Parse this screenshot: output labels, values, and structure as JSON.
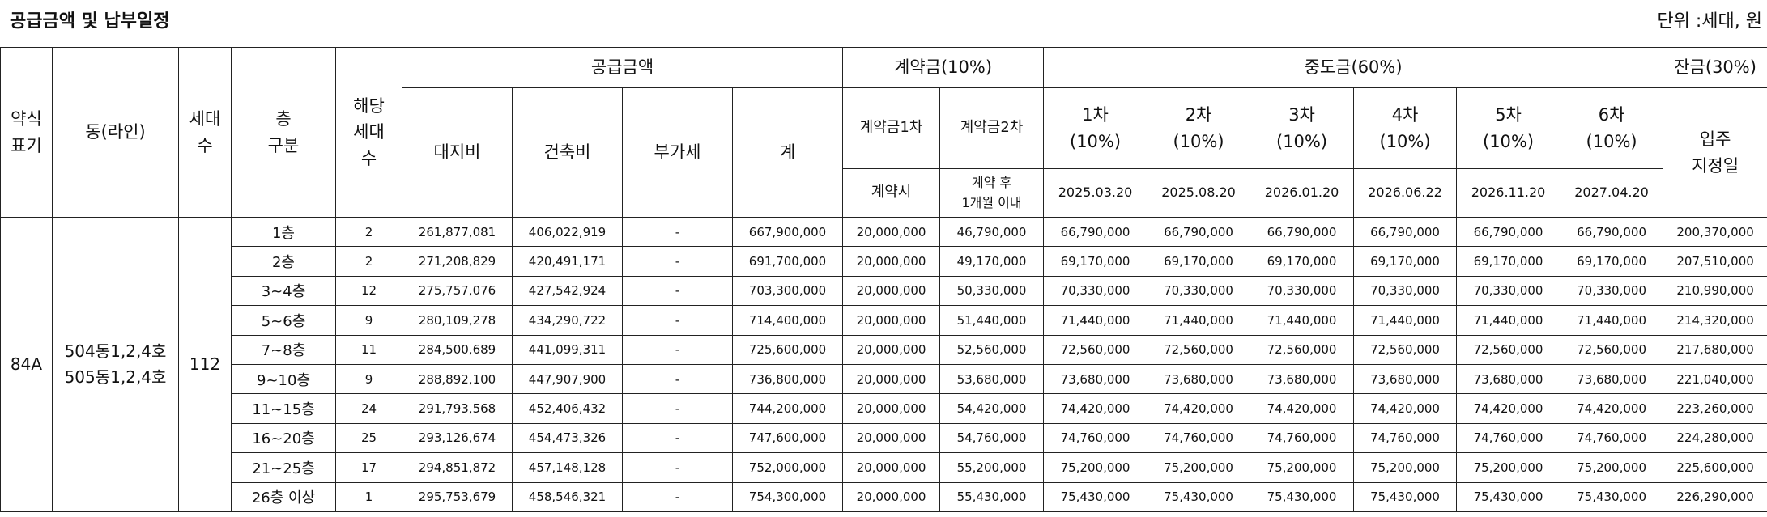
{
  "title": "공급금액 및 납부일정",
  "unit_label": "단위 :세대, 원",
  "headers": {
    "abbr": [
      "약식",
      "표기"
    ],
    "dong": "동(라인)",
    "households": [
      "세대",
      "수"
    ],
    "floor": [
      "층",
      "구분"
    ],
    "applicable": [
      "해당",
      "세대",
      "수"
    ],
    "supply_group": "공급금액",
    "supply_cols": [
      "대지비",
      "건축비",
      "부가세",
      "계"
    ],
    "contract_group": "계약금(10%)",
    "contract_cols": [
      "계약금1차",
      "계약금2차"
    ],
    "contract_when": [
      "계약시",
      "계약 후",
      "1개월 이내"
    ],
    "middle_group": "중도금(60%)",
    "middle_cols": [
      {
        "name": "1차",
        "pct": "(10%)",
        "date": "2025.03.20"
      },
      {
        "name": "2차",
        "pct": "(10%)",
        "date": "2025.08.20"
      },
      {
        "name": "3차",
        "pct": "(10%)",
        "date": "2026.01.20"
      },
      {
        "name": "4차",
        "pct": "(10%)",
        "date": "2026.06.22"
      },
      {
        "name": "5차",
        "pct": "(10%)",
        "date": "2026.11.20"
      },
      {
        "name": "6차",
        "pct": "(10%)",
        "date": "2027.04.20"
      }
    ],
    "balance_group": "잔금(30%)",
    "balance_col": [
      "입주",
      "지정일"
    ]
  },
  "group": {
    "abbr": "84A",
    "dong": [
      "504동1,2,4호",
      "505동1,2,4호"
    ],
    "households": "112"
  },
  "rows": [
    {
      "floor": "1층",
      "count": "2",
      "land": "261,877,081",
      "build": "406,022,919",
      "vat": "-",
      "total": "667,900,000",
      "c1": "20,000,000",
      "c2": "46,790,000",
      "m": "66,790,000",
      "bal": "200,370,000"
    },
    {
      "floor": "2층",
      "count": "2",
      "land": "271,208,829",
      "build": "420,491,171",
      "vat": "-",
      "total": "691,700,000",
      "c1": "20,000,000",
      "c2": "49,170,000",
      "m": "69,170,000",
      "bal": "207,510,000"
    },
    {
      "floor": "3~4층",
      "count": "12",
      "land": "275,757,076",
      "build": "427,542,924",
      "vat": "-",
      "total": "703,300,000",
      "c1": "20,000,000",
      "c2": "50,330,000",
      "m": "70,330,000",
      "bal": "210,990,000"
    },
    {
      "floor": "5~6층",
      "count": "9",
      "land": "280,109,278",
      "build": "434,290,722",
      "vat": "-",
      "total": "714,400,000",
      "c1": "20,000,000",
      "c2": "51,440,000",
      "m": "71,440,000",
      "bal": "214,320,000"
    },
    {
      "floor": "7~8층",
      "count": "11",
      "land": "284,500,689",
      "build": "441,099,311",
      "vat": "-",
      "total": "725,600,000",
      "c1": "20,000,000",
      "c2": "52,560,000",
      "m": "72,560,000",
      "bal": "217,680,000"
    },
    {
      "floor": "9~10층",
      "count": "9",
      "land": "288,892,100",
      "build": "447,907,900",
      "vat": "-",
      "total": "736,800,000",
      "c1": "20,000,000",
      "c2": "53,680,000",
      "m": "73,680,000",
      "bal": "221,040,000"
    },
    {
      "floor": "11~15층",
      "count": "24",
      "land": "291,793,568",
      "build": "452,406,432",
      "vat": "-",
      "total": "744,200,000",
      "c1": "20,000,000",
      "c2": "54,420,000",
      "m": "74,420,000",
      "bal": "223,260,000"
    },
    {
      "floor": "16~20층",
      "count": "25",
      "land": "293,126,674",
      "build": "454,473,326",
      "vat": "-",
      "total": "747,600,000",
      "c1": "20,000,000",
      "c2": "54,760,000",
      "m": "74,760,000",
      "bal": "224,280,000"
    },
    {
      "floor": "21~25층",
      "count": "17",
      "land": "294,851,872",
      "build": "457,148,128",
      "vat": "-",
      "total": "752,000,000",
      "c1": "20,000,000",
      "c2": "55,200,000",
      "m": "75,200,000",
      "bal": "225,600,000"
    },
    {
      "floor": "26층 이상",
      "count": "1",
      "land": "295,753,679",
      "build": "458,546,321",
      "vat": "-",
      "total": "754,300,000",
      "c1": "20,000,000",
      "c2": "55,430,000",
      "m": "75,430,000",
      "bal": "226,290,000"
    }
  ]
}
